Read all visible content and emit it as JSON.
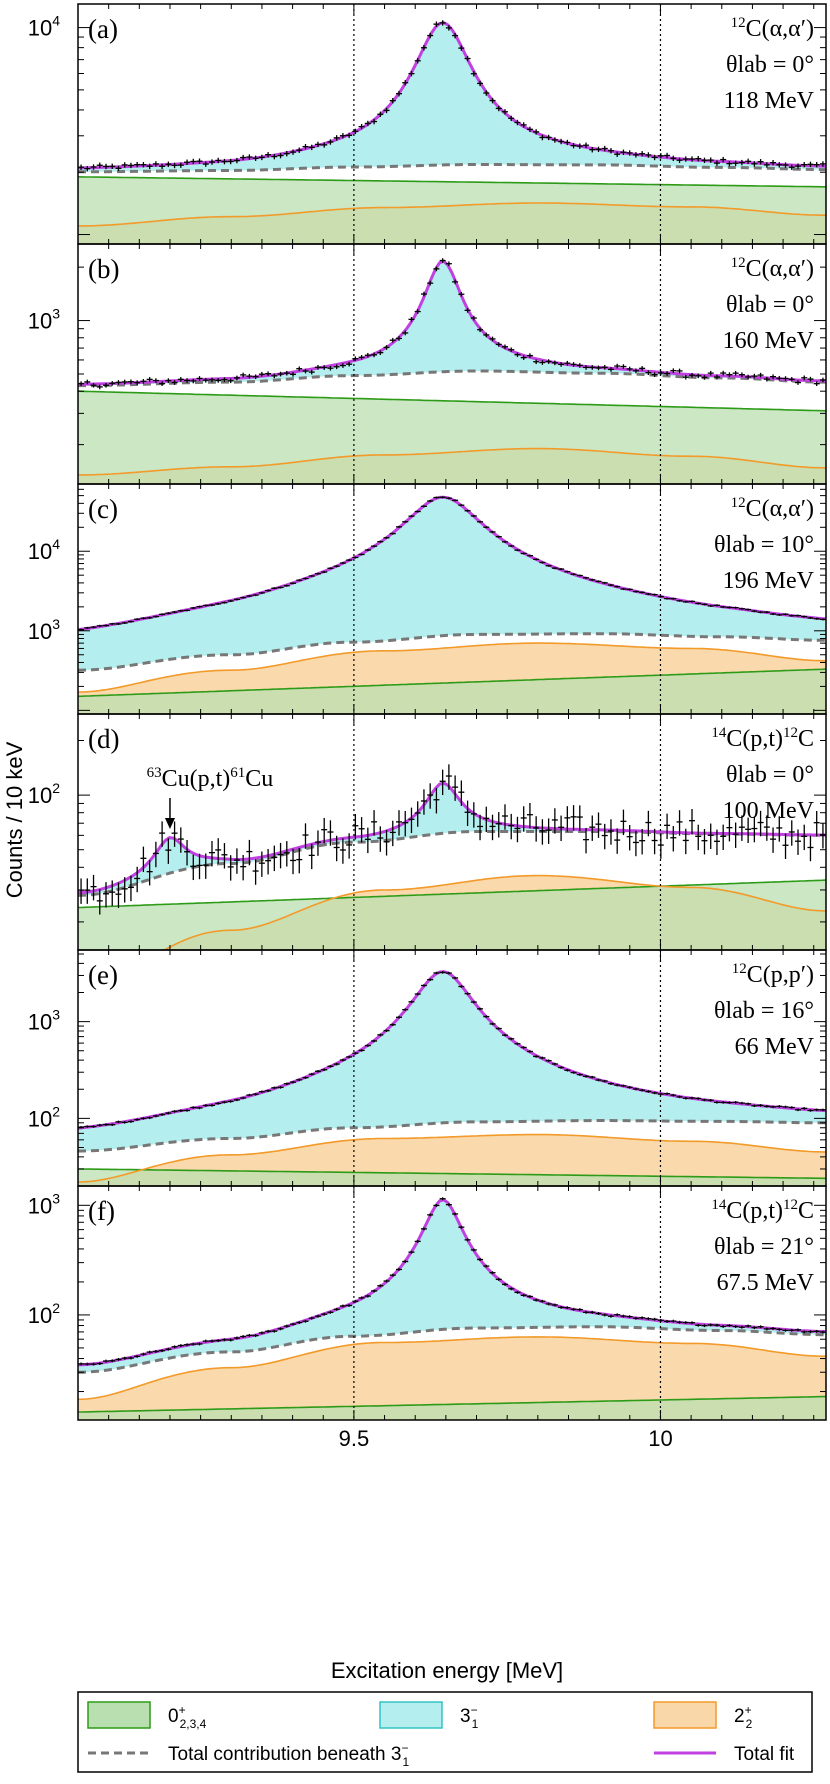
{
  "figure": {
    "ylabel": "Counts / 10 keV",
    "xlabel": "Excitation energy [MeV]",
    "xticks": [
      "9.5",
      "10"
    ]
  },
  "colors": {
    "green_fill": "#b9dfb0",
    "green_line": "#2e9b18",
    "cyan_fill": "#b4eeee",
    "cyan_line": "#33c4c4",
    "orange_fill": "#fad7a8",
    "orange_line": "#f29a2a",
    "total_fit": "#c040e0",
    "dashed": "#777777",
    "data": "#000000"
  },
  "legend": {
    "items": [
      {
        "label": "0",
        "sup": "+",
        "sub": "2,3,4",
        "key": "green"
      },
      {
        "label": "3",
        "sup": "−",
        "sub": "1",
        "key": "cyan"
      },
      {
        "label": "2",
        "sup": "+",
        "sub": "2",
        "key": "orange"
      },
      {
        "label": "Total contribution beneath 3",
        "sup": "−",
        "sub": "1",
        "key": "dashed"
      },
      {
        "label": "Total fit",
        "sup": "",
        "sub": "",
        "key": "fit"
      }
    ]
  },
  "chart_data": [
    {
      "type": "area",
      "panel_label": "(a)",
      "reaction": {
        "pre": "12",
        "main": "C(α,α′)",
        "mid": "",
        "post": ""
      },
      "angle": "θlab = 0°",
      "energy": "118 MeV",
      "scale": "log",
      "xlim": [
        9.05,
        10.27
      ],
      "ylim": [
        900,
        13000
      ],
      "yticks": [
        {
          "value": 10000,
          "base": "10",
          "exp": "4"
        }
      ],
      "components": {
        "green": {
          "x": [
            9.05,
            10.27
          ],
          "y": [
            1900,
            1700
          ]
        },
        "orange": {
          "x": [
            9.05,
            9.3,
            9.55,
            9.8,
            10.05,
            10.27
          ],
          "y": [
            1100,
            1220,
            1350,
            1420,
            1360,
            1240
          ]
        },
        "peak": {
          "center": 9.645,
          "gamma": 0.045,
          "height": 8400,
          "tail": 0.085
        },
        "dashed": {
          "x": [
            9.05,
            9.3,
            9.5,
            9.7,
            9.9,
            10.1,
            10.27
          ],
          "y": [
            2010,
            2040,
            2120,
            2180,
            2170,
            2110,
            2060
          ]
        }
      },
      "annotation": null
    },
    {
      "type": "area",
      "panel_label": "(b)",
      "reaction": {
        "pre": "12",
        "main": "C(α,α′)",
        "mid": "",
        "post": ""
      },
      "angle": "θlab = 0°",
      "energy": "160 MeV",
      "scale": "log",
      "xlim": [
        9.05,
        10.27
      ],
      "ylim": [
        120,
        2700
      ],
      "yticks": [
        {
          "value": 1000,
          "base": "10",
          "exp": "3"
        }
      ],
      "components": {
        "green": {
          "x": [
            9.05,
            10.27
          ],
          "y": [
            400,
            310
          ]
        },
        "orange": {
          "x": [
            9.05,
            9.3,
            9.55,
            9.8,
            10.05,
            10.27
          ],
          "y": [
            135,
            150,
            175,
            190,
            172,
            148
          ]
        },
        "peak": {
          "center": 9.645,
          "gamma": 0.03,
          "height": 1650,
          "tail": 0.07
        },
        "dashed": {
          "x": [
            9.05,
            9.3,
            9.5,
            9.7,
            9.9,
            10.1,
            10.27
          ],
          "y": [
            430,
            450,
            490,
            520,
            505,
            475,
            450
          ]
        }
      },
      "annotation": null
    },
    {
      "type": "area",
      "panel_label": "(c)",
      "reaction": {
        "pre": "12",
        "main": "C(α,α′)",
        "mid": "",
        "post": ""
      },
      "angle": "θlab = 10°",
      "energy": "196 MeV",
      "scale": "log",
      "xlim": [
        9.05,
        10.27
      ],
      "ylim": [
        90,
        70000
      ],
      "yticks": [
        {
          "value": 1000,
          "base": "10",
          "exp": "3"
        },
        {
          "value": 10000,
          "base": "10",
          "exp": "4"
        }
      ],
      "components": {
        "green": {
          "x": [
            9.05,
            10.27
          ],
          "y": [
            150,
            330
          ]
        },
        "orange": {
          "x": [
            9.05,
            9.3,
            9.55,
            9.8,
            10.05,
            10.27
          ],
          "y": [
            170,
            320,
            560,
            700,
            600,
            420
          ]
        },
        "peak": {
          "center": 9.645,
          "gamma": 0.055,
          "height": 47000,
          "tail": 0.13
        },
        "dashed": {
          "x": [
            9.05,
            9.3,
            9.5,
            9.7,
            9.9,
            10.1,
            10.27
          ],
          "y": [
            320,
            500,
            720,
            900,
            920,
            840,
            760
          ]
        }
      },
      "annotation": null
    },
    {
      "type": "area",
      "panel_label": "(d)",
      "reaction": {
        "pre": "14",
        "main": "C(p,t)",
        "mid": "12",
        "post": "C"
      },
      "angle": "θlab = 0°",
      "energy": "100 MeV",
      "scale": "log",
      "xlim": [
        9.05,
        10.27
      ],
      "ylim": [
        14,
        280
      ],
      "yticks": [
        {
          "value": 100,
          "base": "10",
          "exp": "2"
        }
      ],
      "components": {
        "green": {
          "x": [
            9.05,
            10.27
          ],
          "y": [
            24,
            34
          ]
        },
        "orange": {
          "x": [
            9.05,
            9.3,
            9.55,
            9.8,
            10.05,
            10.27
          ],
          "y": [
            8,
            18,
            30,
            36,
            31,
            23
          ]
        },
        "peak": {
          "center": 9.645,
          "gamma": 0.03,
          "height": 55,
          "tail": 0.04
        },
        "extra_peak": {
          "center": 9.2,
          "gamma": 0.028,
          "height": 22
        },
        "dashed": {
          "x": [
            9.05,
            9.3,
            9.5,
            9.7,
            9.9,
            10.1,
            10.27
          ],
          "y": [
            28,
            42,
            55,
            63,
            63,
            61,
            60
          ]
        }
      },
      "annotation": {
        "pre": "63",
        "main": "Cu(p,t)",
        "mid": "61",
        "post": "Cu",
        "x": 9.2
      }
    },
    {
      "type": "area",
      "panel_label": "(e)",
      "reaction": {
        "pre": "12",
        "main": "C(p,p′)",
        "mid": "",
        "post": ""
      },
      "angle": "θlab = 16°",
      "energy": "66 MeV",
      "scale": "log",
      "xlim": [
        9.05,
        10.27
      ],
      "ylim": [
        20,
        5500
      ],
      "yticks": [
        {
          "value": 100,
          "base": "10",
          "exp": "2"
        },
        {
          "value": 1000,
          "base": "10",
          "exp": "3"
        }
      ],
      "components": {
        "green": {
          "x": [
            9.05,
            10.27
          ],
          "y": [
            30,
            24
          ]
        },
        "orange": {
          "x": [
            9.05,
            9.3,
            9.55,
            9.8,
            10.05,
            10.27
          ],
          "y": [
            22,
            42,
            62,
            68,
            58,
            45
          ]
        },
        "peak": {
          "center": 9.645,
          "gamma": 0.045,
          "height": 3200,
          "tail": 0.1
        },
        "dashed": {
          "x": [
            9.05,
            9.3,
            9.5,
            9.7,
            9.9,
            10.1,
            10.27
          ],
          "y": [
            46,
            62,
            80,
            92,
            95,
            93,
            90
          ]
        }
      },
      "annotation": null
    },
    {
      "type": "area",
      "panel_label": "(f)",
      "reaction": {
        "pre": "14",
        "main": "C(p,t)",
        "mid": "12",
        "post": "C"
      },
      "angle": "θlab = 21°",
      "energy": "67.5 MeV",
      "scale": "log",
      "xlim": [
        9.05,
        10.27
      ],
      "ylim": [
        11,
        1500
      ],
      "yticks": [
        {
          "value": 100,
          "base": "10",
          "exp": "2"
        },
        {
          "value": 1000,
          "base": "10",
          "exp": "3"
        }
      ],
      "components": {
        "green": {
          "x": [
            9.05,
            10.27
          ],
          "y": [
            13,
            18
          ]
        },
        "orange": {
          "x": [
            9.05,
            9.3,
            9.55,
            9.8,
            10.05,
            10.27
          ],
          "y": [
            17,
            33,
            56,
            63,
            55,
            42
          ]
        },
        "peak": {
          "center": 9.645,
          "gamma": 0.03,
          "height": 1050,
          "tail": 0.08
        },
        "dashed": {
          "x": [
            9.05,
            9.3,
            9.5,
            9.7,
            9.9,
            10.1,
            10.27
          ],
          "y": [
            30,
            46,
            64,
            76,
            78,
            72,
            66
          ]
        }
      },
      "annotation": null
    }
  ]
}
